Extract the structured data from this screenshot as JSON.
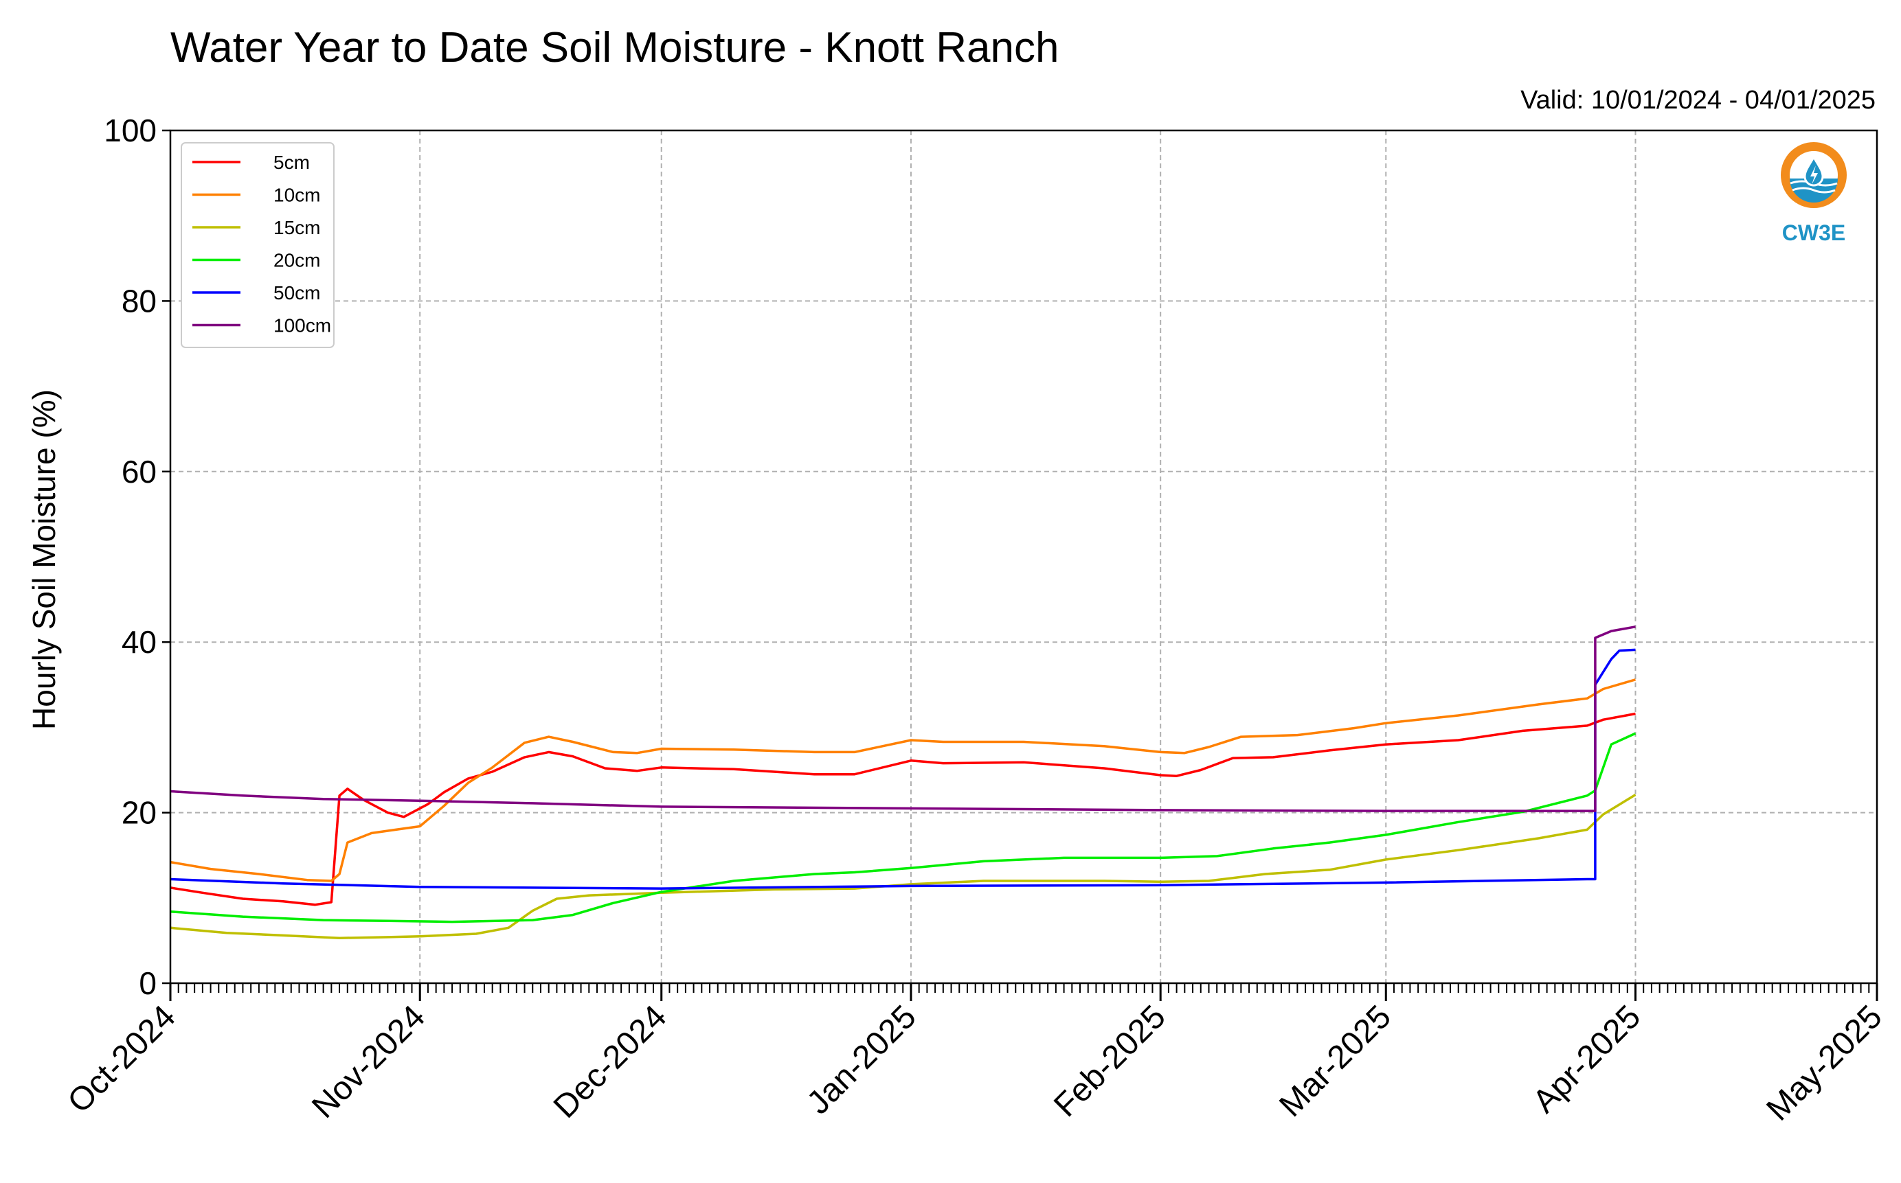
{
  "chart_data": {
    "type": "line",
    "title": "Water Year to Date Soil Moisture - Knott Ranch",
    "subtitle": "Valid: 10/01/2024 - 04/01/2025",
    "ylabel": "Hourly Soil Moisture (%)",
    "xlabel": "",
    "ylim": [
      0,
      100
    ],
    "yticks": [
      "0",
      "20",
      "40",
      "60",
      "80",
      "100"
    ],
    "x_tick_labels": [
      "Oct-2024",
      "Nov-2024",
      "Dec-2024",
      "Jan-2025",
      "Feb-2025",
      "Mar-2025",
      "Apr-2025",
      "May-2025"
    ],
    "x_tick_dates": [
      "2024-10-01",
      "2024-11-01",
      "2024-12-01",
      "2025-01-01",
      "2025-02-01",
      "2025-03-01",
      "2025-04-01",
      "2025-05-01"
    ],
    "xlim": [
      "2024-10-01",
      "2025-05-01"
    ],
    "grid": true,
    "legend_position": "top-left",
    "series": [
      {
        "name": "5cm",
        "color": "#ff0000",
        "points": [
          [
            "2024-10-01",
            11.2
          ],
          [
            "2024-10-05",
            10.6
          ],
          [
            "2024-10-10",
            9.9
          ],
          [
            "2024-10-15",
            9.6
          ],
          [
            "2024-10-19",
            9.2
          ],
          [
            "2024-10-21",
            9.5
          ],
          [
            "2024-10-22",
            22.0
          ],
          [
            "2024-10-23",
            22.8
          ],
          [
            "2024-10-25",
            21.5
          ],
          [
            "2024-10-28",
            20.0
          ],
          [
            "2024-10-30",
            19.5
          ],
          [
            "2024-11-02",
            21.0
          ],
          [
            "2024-11-04",
            22.4
          ],
          [
            "2024-11-07",
            24.0
          ],
          [
            "2024-11-10",
            24.8
          ],
          [
            "2024-11-14",
            26.5
          ],
          [
            "2024-11-17",
            27.1
          ],
          [
            "2024-11-20",
            26.6
          ],
          [
            "2024-11-24",
            25.2
          ],
          [
            "2024-11-28",
            24.9
          ],
          [
            "2024-12-01",
            25.3
          ],
          [
            "2024-12-10",
            25.1
          ],
          [
            "2024-12-20",
            24.5
          ],
          [
            "2024-12-25",
            24.5
          ],
          [
            "2025-01-01",
            26.1
          ],
          [
            "2025-01-05",
            25.8
          ],
          [
            "2025-01-15",
            25.9
          ],
          [
            "2025-01-25",
            25.2
          ],
          [
            "2025-02-01",
            24.4
          ],
          [
            "2025-02-03",
            24.3
          ],
          [
            "2025-02-06",
            25.0
          ],
          [
            "2025-02-10",
            26.4
          ],
          [
            "2025-02-15",
            26.5
          ],
          [
            "2025-02-22",
            27.3
          ],
          [
            "2025-03-01",
            28.0
          ],
          [
            "2025-03-10",
            28.5
          ],
          [
            "2025-03-18",
            29.6
          ],
          [
            "2025-03-26",
            30.2
          ],
          [
            "2025-03-28",
            30.9
          ],
          [
            "2025-04-01",
            31.6
          ]
        ]
      },
      {
        "name": "10cm",
        "color": "#ff8000",
        "points": [
          [
            "2024-10-01",
            14.2
          ],
          [
            "2024-10-06",
            13.4
          ],
          [
            "2024-10-12",
            12.8
          ],
          [
            "2024-10-18",
            12.1
          ],
          [
            "2024-10-21",
            12.0
          ],
          [
            "2024-10-22",
            12.8
          ],
          [
            "2024-10-23",
            16.5
          ],
          [
            "2024-10-26",
            17.6
          ],
          [
            "2024-10-29",
            18.0
          ],
          [
            "2024-11-01",
            18.4
          ],
          [
            "2024-11-04",
            20.8
          ],
          [
            "2024-11-07",
            23.5
          ],
          [
            "2024-11-10",
            25.3
          ],
          [
            "2024-11-14",
            28.2
          ],
          [
            "2024-11-17",
            28.9
          ],
          [
            "2024-11-20",
            28.3
          ],
          [
            "2024-11-25",
            27.1
          ],
          [
            "2024-11-28",
            27.0
          ],
          [
            "2024-12-01",
            27.5
          ],
          [
            "2024-12-10",
            27.4
          ],
          [
            "2024-12-20",
            27.1
          ],
          [
            "2024-12-25",
            27.1
          ],
          [
            "2025-01-01",
            28.5
          ],
          [
            "2025-01-05",
            28.3
          ],
          [
            "2025-01-15",
            28.3
          ],
          [
            "2025-01-25",
            27.8
          ],
          [
            "2025-02-01",
            27.1
          ],
          [
            "2025-02-04",
            27.0
          ],
          [
            "2025-02-07",
            27.7
          ],
          [
            "2025-02-11",
            28.9
          ],
          [
            "2025-02-18",
            29.1
          ],
          [
            "2025-02-25",
            29.9
          ],
          [
            "2025-03-01",
            30.5
          ],
          [
            "2025-03-10",
            31.4
          ],
          [
            "2025-03-20",
            32.7
          ],
          [
            "2025-03-26",
            33.4
          ],
          [
            "2025-03-28",
            34.5
          ],
          [
            "2025-04-01",
            35.6
          ]
        ]
      },
      {
        "name": "15cm",
        "color": "#bfbf00",
        "points": [
          [
            "2024-10-01",
            6.5
          ],
          [
            "2024-10-08",
            5.9
          ],
          [
            "2024-10-15",
            5.6
          ],
          [
            "2024-10-22",
            5.3
          ],
          [
            "2024-10-28",
            5.4
          ],
          [
            "2024-11-01",
            5.5
          ],
          [
            "2024-11-08",
            5.8
          ],
          [
            "2024-11-12",
            6.5
          ],
          [
            "2024-11-15",
            8.5
          ],
          [
            "2024-11-18",
            9.9
          ],
          [
            "2024-11-22",
            10.3
          ],
          [
            "2024-12-01",
            10.6
          ],
          [
            "2024-12-15",
            11.0
          ],
          [
            "2024-12-25",
            11.1
          ],
          [
            "2025-01-01",
            11.6
          ],
          [
            "2025-01-10",
            12.0
          ],
          [
            "2025-01-25",
            12.0
          ],
          [
            "2025-02-01",
            11.9
          ],
          [
            "2025-02-07",
            12.0
          ],
          [
            "2025-02-14",
            12.8
          ],
          [
            "2025-02-22",
            13.3
          ],
          [
            "2025-03-01",
            14.5
          ],
          [
            "2025-03-10",
            15.6
          ],
          [
            "2025-03-20",
            17.0
          ],
          [
            "2025-03-26",
            18.0
          ],
          [
            "2025-03-28",
            19.8
          ],
          [
            "2025-04-01",
            22.1
          ]
        ]
      },
      {
        "name": "20cm",
        "color": "#00ee00",
        "points": [
          [
            "2024-10-01",
            8.4
          ],
          [
            "2024-10-10",
            7.8
          ],
          [
            "2024-10-20",
            7.4
          ],
          [
            "2024-10-28",
            7.3
          ],
          [
            "2024-11-05",
            7.2
          ],
          [
            "2024-11-15",
            7.4
          ],
          [
            "2024-11-20",
            8.0
          ],
          [
            "2024-11-25",
            9.4
          ],
          [
            "2024-12-01",
            10.7
          ],
          [
            "2024-12-10",
            12.0
          ],
          [
            "2024-12-20",
            12.8
          ],
          [
            "2024-12-25",
            13.0
          ],
          [
            "2025-01-01",
            13.5
          ],
          [
            "2025-01-10",
            14.3
          ],
          [
            "2025-01-20",
            14.7
          ],
          [
            "2025-02-01",
            14.7
          ],
          [
            "2025-02-08",
            14.9
          ],
          [
            "2025-02-15",
            15.8
          ],
          [
            "2025-02-22",
            16.5
          ],
          [
            "2025-03-01",
            17.4
          ],
          [
            "2025-03-10",
            18.9
          ],
          [
            "2025-03-18",
            20.1
          ],
          [
            "2025-03-26",
            22.0
          ],
          [
            "2025-03-27",
            22.6
          ],
          [
            "2025-03-29",
            28.0
          ],
          [
            "2025-04-01",
            29.3
          ]
        ]
      },
      {
        "name": "50cm",
        "color": "#0000ff",
        "points": [
          [
            "2024-10-01",
            12.2
          ],
          [
            "2024-10-15",
            11.7
          ],
          [
            "2024-11-01",
            11.3
          ],
          [
            "2024-12-01",
            11.1
          ],
          [
            "2025-01-01",
            11.4
          ],
          [
            "2025-02-01",
            11.5
          ],
          [
            "2025-03-01",
            11.8
          ],
          [
            "2025-03-26",
            12.2
          ],
          [
            "2025-03-27",
            12.2
          ],
          [
            "2025-03-27",
            35.0
          ],
          [
            "2025-03-29",
            38.0
          ],
          [
            "2025-03-30",
            39.0
          ],
          [
            "2025-04-01",
            39.1
          ]
        ]
      },
      {
        "name": "100cm",
        "color": "#800080",
        "points": [
          [
            "2024-10-01",
            22.5
          ],
          [
            "2024-10-10",
            22.0
          ],
          [
            "2024-10-20",
            21.6
          ],
          [
            "2024-11-01",
            21.4
          ],
          [
            "2024-11-15",
            21.1
          ],
          [
            "2024-12-01",
            20.7
          ],
          [
            "2025-01-01",
            20.5
          ],
          [
            "2025-02-01",
            20.3
          ],
          [
            "2025-03-01",
            20.2
          ],
          [
            "2025-03-26",
            20.2
          ],
          [
            "2025-03-27",
            20.2
          ],
          [
            "2025-03-27",
            40.5
          ],
          [
            "2025-03-29",
            41.3
          ],
          [
            "2025-04-01",
            41.8
          ]
        ]
      }
    ]
  },
  "logo": {
    "text": "CW3E",
    "ring_color": "#f28c1c",
    "water_color": "#1f93c6"
  }
}
